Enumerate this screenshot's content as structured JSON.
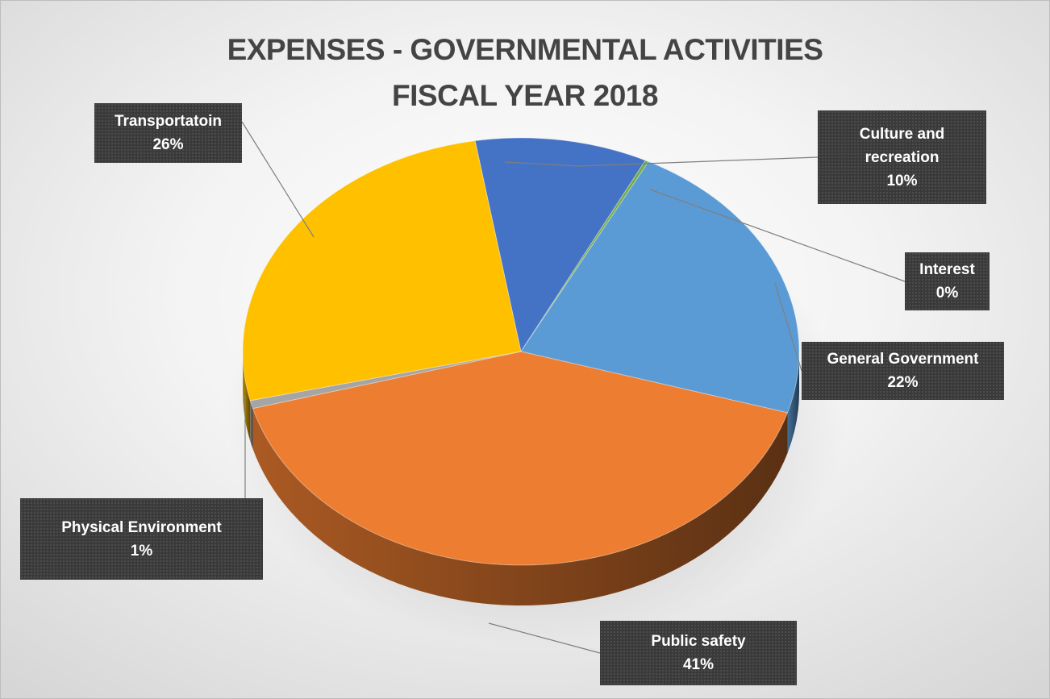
{
  "chart_data": {
    "type": "pie",
    "title_lines": [
      "EXPENSES - GOVERNMENTAL ACTIVITIES",
      "FISCAL YEAR 2018"
    ],
    "slices": [
      {
        "label_lines": [
          "Culture and",
          "recreation"
        ],
        "label": "Culture and recreation",
        "percent_label": "10%",
        "value": 10,
        "color": "#4472C4"
      },
      {
        "label_lines": [
          "Interest"
        ],
        "label": "Interest",
        "percent_label": "0%",
        "value": 0.2,
        "color": "#70AD47"
      },
      {
        "label_lines": [
          "General Government"
        ],
        "label": "General Government",
        "percent_label": "22%",
        "value": 22,
        "color": "#5B9BD5"
      },
      {
        "label_lines": [
          "Public safety"
        ],
        "label": "Public safety",
        "percent_label": "41%",
        "value": 41,
        "color": "#ED7D31"
      },
      {
        "label_lines": [
          "Physical Environment"
        ],
        "label": "Physical Environment",
        "percent_label": "1%",
        "value": 0.6,
        "color": "#A5A5A5"
      },
      {
        "label_lines": [
          "Transportatoin"
        ],
        "label": "Transportatoin",
        "percent_label": "26%",
        "value": 26,
        "color": "#FFC000"
      }
    ],
    "label_color": "#FFFFFF",
    "label_background": "#3A3A3A",
    "legend": "none",
    "style": "3d-pie-with-callout-labels"
  }
}
